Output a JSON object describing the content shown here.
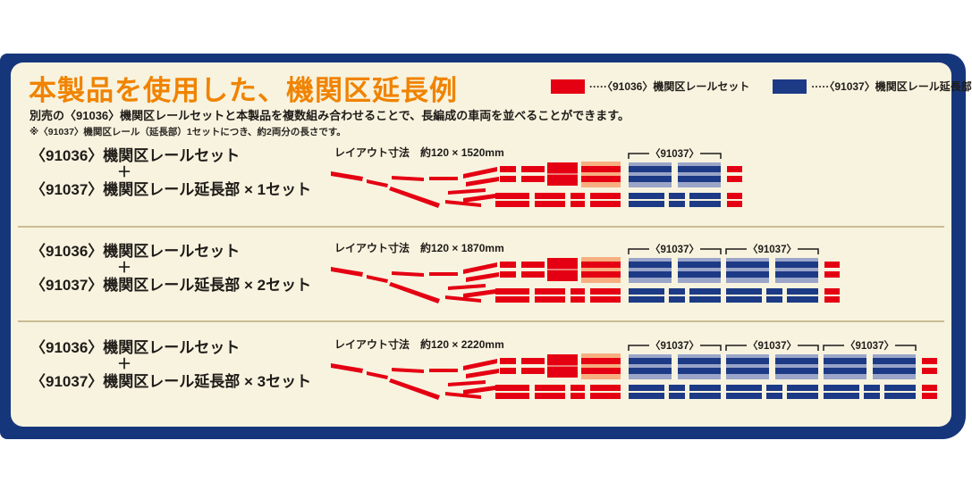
{
  "title": "本製品を使用した、機関区延長例",
  "subtitle": "別売の〈91036〉機関区レールセットと本製品を複数組み合わせることで、長編成の車両を並べることができます。",
  "note": "※〈91037〉機関区レール（延長部）1セットにつき、約2両分の長さです。",
  "legend": {
    "items": [
      {
        "id": "91036",
        "label": "·····〈91036〉機関区レールセット",
        "color": "#e40012"
      },
      {
        "id": "91037",
        "label": "·····〈91037〉機関区レール延長部",
        "color": "#1d3a86"
      }
    ]
  },
  "rows": [
    {
      "set_label_1": "〈91036〉機関区レールセット",
      "plus": "＋",
      "set_label_2": "〈91037〉機関区レール延長部 × 1セット",
      "dimension_label": "レイアウト寸法　約120 × 1520mm",
      "extension_sets": 1,
      "bracket_label": "〈91037〉"
    },
    {
      "set_label_1": "〈91036〉機関区レールセット",
      "plus": "＋",
      "set_label_2": "〈91037〉機関区レール延長部 × 2セット",
      "dimension_label": "レイアウト寸法　約120 × 1870mm",
      "extension_sets": 2,
      "bracket_label": "〈91037〉"
    },
    {
      "set_label_1": "〈91036〉機関区レールセット",
      "plus": "＋",
      "set_label_2": "〈91037〉機関区レール延長部 × 3セット",
      "dimension_label": "レイアウト寸法　約120 × 2220mm",
      "extension_sets": 3,
      "bracket_label": "〈91037〉"
    }
  ],
  "colors": {
    "red": "#e40012",
    "salmon": "#f7ae80",
    "light_blue": "#9aa5c8",
    "dark_blue": "#1d3a86",
    "navy": "#16367c",
    "cream": "#f7f3df",
    "orange": "#f08300",
    "text": "#1f1b18",
    "separator": "#c9bd92"
  }
}
